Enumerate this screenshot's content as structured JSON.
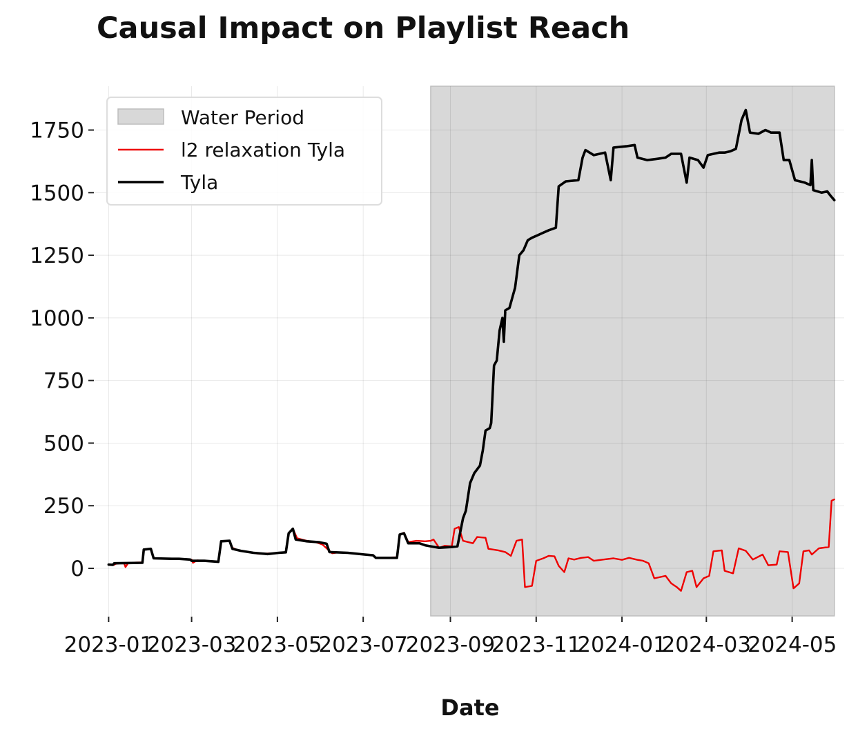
{
  "chart_data": {
    "type": "line",
    "title": "Causal Impact on Playlist Reach",
    "xlabel": "Date",
    "ylabel": "",
    "xlim": [
      "2022-12-22",
      "2024-06-07"
    ],
    "ylim": [
      -190,
      1925
    ],
    "y_ticks": [
      0,
      250,
      500,
      750,
      1000,
      1250,
      1500,
      1750
    ],
    "y_tick_labels": [
      "0",
      "250",
      "500",
      "750",
      "1000",
      "1250",
      "1500",
      "1750"
    ],
    "x_ticks": [
      "2023-01-01",
      "2023-03-01",
      "2023-05-01",
      "2023-07-01",
      "2023-09-01",
      "2023-11-01",
      "2024-01-01",
      "2024-03-01",
      "2024-05-01"
    ],
    "x_tick_labels": [
      "2023-01",
      "2023-03",
      "2023-05",
      "2023-07",
      "2023-09",
      "2023-11",
      "2024-01",
      "2024-03",
      "2024-05"
    ],
    "grid": true,
    "legend_position": "top-left",
    "shaded_region": {
      "label": "Water Period",
      "start": "2023-08-18",
      "end": "2024-05-31",
      "color": "#d8d8d8"
    },
    "series": [
      {
        "name": "l2 relaxation Tyla",
        "color": "#ee0000",
        "points": [
          [
            "2023-01-01",
            15
          ],
          [
            "2023-01-05",
            14
          ],
          [
            "2023-01-06",
            18
          ],
          [
            "2023-01-09",
            20
          ],
          [
            "2023-01-12",
            20
          ],
          [
            "2023-01-13",
            5
          ],
          [
            "2023-01-15",
            22
          ],
          [
            "2023-01-25",
            24
          ],
          [
            "2023-01-26",
            75
          ],
          [
            "2023-01-31",
            78
          ],
          [
            "2023-02-02",
            40
          ],
          [
            "2023-02-15",
            38
          ],
          [
            "2023-02-20",
            38
          ],
          [
            "2023-02-25",
            35
          ],
          [
            "2023-03-01",
            35
          ],
          [
            "2023-03-02",
            22
          ],
          [
            "2023-03-05",
            32
          ],
          [
            "2023-03-09",
            30
          ],
          [
            "2023-03-14",
            28
          ],
          [
            "2023-03-20",
            26
          ],
          [
            "2023-03-22",
            108
          ],
          [
            "2023-03-28",
            110
          ],
          [
            "2023-03-30",
            82
          ],
          [
            "2023-04-03",
            72
          ],
          [
            "2023-04-10",
            65
          ],
          [
            "2023-04-18",
            58
          ],
          [
            "2023-04-28",
            60
          ],
          [
            "2023-05-07",
            64
          ],
          [
            "2023-05-09",
            140
          ],
          [
            "2023-05-12",
            158
          ],
          [
            "2023-05-15",
            120
          ],
          [
            "2023-05-22",
            110
          ],
          [
            "2023-05-28",
            105
          ],
          [
            "2023-06-02",
            95
          ],
          [
            "2023-06-06",
            75
          ],
          [
            "2023-06-09",
            60
          ],
          [
            "2023-06-14",
            64
          ],
          [
            "2023-06-24",
            60
          ],
          [
            "2023-07-02",
            55
          ],
          [
            "2023-07-08",
            52
          ],
          [
            "2023-07-10",
            42
          ],
          [
            "2023-07-25",
            44
          ],
          [
            "2023-07-27",
            135
          ],
          [
            "2023-07-30",
            142
          ],
          [
            "2023-08-02",
            105
          ],
          [
            "2023-08-08",
            110
          ],
          [
            "2023-08-14",
            108
          ],
          [
            "2023-08-18",
            110
          ],
          [
            "2023-08-20",
            115
          ],
          [
            "2023-08-24",
            82
          ],
          [
            "2023-08-28",
            90
          ],
          [
            "2023-09-02",
            88
          ],
          [
            "2023-09-04",
            158
          ],
          [
            "2023-09-07",
            165
          ],
          [
            "2023-09-10",
            110
          ],
          [
            "2023-09-17",
            100
          ],
          [
            "2023-09-20",
            125
          ],
          [
            "2023-09-26",
            122
          ],
          [
            "2023-09-28",
            78
          ],
          [
            "2023-10-05",
            72
          ],
          [
            "2023-10-10",
            65
          ],
          [
            "2023-10-14",
            50
          ],
          [
            "2023-10-18",
            110
          ],
          [
            "2023-10-22",
            115
          ],
          [
            "2023-10-24",
            -75
          ],
          [
            "2023-10-29",
            -70
          ],
          [
            "2023-11-01",
            30
          ],
          [
            "2023-11-06",
            40
          ],
          [
            "2023-11-10",
            50
          ],
          [
            "2023-11-14",
            48
          ],
          [
            "2023-11-17",
            10
          ],
          [
            "2023-11-21",
            -15
          ],
          [
            "2023-11-24",
            40
          ],
          [
            "2023-11-28",
            35
          ],
          [
            "2023-12-03",
            42
          ],
          [
            "2023-12-08",
            45
          ],
          [
            "2023-12-12",
            30
          ],
          [
            "2023-12-20",
            36
          ],
          [
            "2023-12-26",
            40
          ],
          [
            "2024-01-01",
            34
          ],
          [
            "2024-01-06",
            42
          ],
          [
            "2024-01-12",
            34
          ],
          [
            "2024-01-16",
            30
          ],
          [
            "2024-01-20",
            20
          ],
          [
            "2024-01-24",
            -40
          ],
          [
            "2024-02-01",
            -30
          ],
          [
            "2024-02-05",
            -60
          ],
          [
            "2024-02-09",
            -75
          ],
          [
            "2024-02-12",
            -90
          ],
          [
            "2024-02-16",
            -15
          ],
          [
            "2024-02-20",
            -10
          ],
          [
            "2024-02-23",
            -75
          ],
          [
            "2024-02-28",
            -40
          ],
          [
            "2024-03-03",
            -30
          ],
          [
            "2024-03-06",
            68
          ],
          [
            "2024-03-12",
            72
          ],
          [
            "2024-03-14",
            -10
          ],
          [
            "2024-03-20",
            -20
          ],
          [
            "2024-03-24",
            80
          ],
          [
            "2024-03-29",
            70
          ],
          [
            "2024-04-03",
            35
          ],
          [
            "2024-04-10",
            55
          ],
          [
            "2024-04-14",
            12
          ],
          [
            "2024-04-20",
            15
          ],
          [
            "2024-04-22",
            68
          ],
          [
            "2024-04-28",
            65
          ],
          [
            "2024-05-02",
            -80
          ],
          [
            "2024-05-06",
            -60
          ],
          [
            "2024-05-09",
            68
          ],
          [
            "2024-05-13",
            72
          ],
          [
            "2024-05-15",
            55
          ],
          [
            "2024-05-20",
            80
          ],
          [
            "2024-05-27",
            85
          ],
          [
            "2024-05-29",
            270
          ],
          [
            "2024-05-31",
            275
          ]
        ]
      },
      {
        "name": "Tyla",
        "color": "#000000",
        "points": [
          [
            "2023-01-01",
            15
          ],
          [
            "2023-01-04",
            14
          ],
          [
            "2023-01-05",
            20
          ],
          [
            "2023-01-25",
            22
          ],
          [
            "2023-01-26",
            75
          ],
          [
            "2023-01-31",
            78
          ],
          [
            "2023-02-02",
            40
          ],
          [
            "2023-02-15",
            38
          ],
          [
            "2023-02-20",
            38
          ],
          [
            "2023-02-28",
            35
          ],
          [
            "2023-03-01",
            30
          ],
          [
            "2023-03-10",
            30
          ],
          [
            "2023-03-20",
            26
          ],
          [
            "2023-03-22",
            108
          ],
          [
            "2023-03-28",
            110
          ],
          [
            "2023-03-30",
            78
          ],
          [
            "2023-04-05",
            70
          ],
          [
            "2023-04-14",
            62
          ],
          [
            "2023-04-24",
            57
          ],
          [
            "2023-05-02",
            62
          ],
          [
            "2023-05-07",
            64
          ],
          [
            "2023-05-09",
            140
          ],
          [
            "2023-05-12",
            158
          ],
          [
            "2023-05-14",
            115
          ],
          [
            "2023-05-22",
            108
          ],
          [
            "2023-05-31",
            104
          ],
          [
            "2023-06-05",
            98
          ],
          [
            "2023-06-07",
            65
          ],
          [
            "2023-06-20",
            62
          ],
          [
            "2023-07-02",
            55
          ],
          [
            "2023-07-08",
            52
          ],
          [
            "2023-07-10",
            42
          ],
          [
            "2023-07-25",
            42
          ],
          [
            "2023-07-27",
            135
          ],
          [
            "2023-07-30",
            140
          ],
          [
            "2023-08-02",
            100
          ],
          [
            "2023-08-10",
            100
          ],
          [
            "2023-08-14",
            92
          ],
          [
            "2023-08-18",
            88
          ],
          [
            "2023-08-24",
            82
          ],
          [
            "2023-09-02",
            85
          ],
          [
            "2023-09-06",
            88
          ],
          [
            "2023-09-10",
            200
          ],
          [
            "2023-09-12",
            230
          ],
          [
            "2023-09-15",
            340
          ],
          [
            "2023-09-18",
            380
          ],
          [
            "2023-09-22",
            410
          ],
          [
            "2023-09-24",
            470
          ],
          [
            "2023-09-26",
            550
          ],
          [
            "2023-09-29",
            560
          ],
          [
            "2023-09-30",
            580
          ],
          [
            "2023-10-02",
            810
          ],
          [
            "2023-10-04",
            830
          ],
          [
            "2023-10-06",
            950
          ],
          [
            "2023-10-08",
            1000
          ],
          [
            "2023-10-09",
            905
          ],
          [
            "2023-10-10",
            1030
          ],
          [
            "2023-10-13",
            1040
          ],
          [
            "2023-10-15",
            1080
          ],
          [
            "2023-10-17",
            1120
          ],
          [
            "2023-10-20",
            1250
          ],
          [
            "2023-10-23",
            1270
          ],
          [
            "2023-10-26",
            1310
          ],
          [
            "2023-10-29",
            1320
          ],
          [
            "2023-11-02",
            1330
          ],
          [
            "2023-11-06",
            1340
          ],
          [
            "2023-11-10",
            1350
          ],
          [
            "2023-11-15",
            1360
          ],
          [
            "2023-11-17",
            1525
          ],
          [
            "2023-11-22",
            1545
          ],
          [
            "2023-12-01",
            1550
          ],
          [
            "2023-12-04",
            1640
          ],
          [
            "2023-12-06",
            1670
          ],
          [
            "2023-12-12",
            1650
          ],
          [
            "2023-12-20",
            1660
          ],
          [
            "2023-12-24",
            1550
          ],
          [
            "2023-12-26",
            1680
          ],
          [
            "2024-01-04",
            1685
          ],
          [
            "2024-01-10",
            1690
          ],
          [
            "2024-01-12",
            1640
          ],
          [
            "2024-01-19",
            1630
          ],
          [
            "2024-01-26",
            1635
          ],
          [
            "2024-02-01",
            1640
          ],
          [
            "2024-02-05",
            1655
          ],
          [
            "2024-02-12",
            1655
          ],
          [
            "2024-02-16",
            1540
          ],
          [
            "2024-02-18",
            1640
          ],
          [
            "2024-02-24",
            1630
          ],
          [
            "2024-02-28",
            1600
          ],
          [
            "2024-03-02",
            1650
          ],
          [
            "2024-03-10",
            1660
          ],
          [
            "2024-03-14",
            1660
          ],
          [
            "2024-03-18",
            1665
          ],
          [
            "2024-03-22",
            1675
          ],
          [
            "2024-03-26",
            1790
          ],
          [
            "2024-03-29",
            1830
          ],
          [
            "2024-04-01",
            1740
          ],
          [
            "2024-04-07",
            1735
          ],
          [
            "2024-04-12",
            1750
          ],
          [
            "2024-04-16",
            1740
          ],
          [
            "2024-04-22",
            1740
          ],
          [
            "2024-04-25",
            1630
          ],
          [
            "2024-04-29",
            1630
          ],
          [
            "2024-05-03",
            1550
          ],
          [
            "2024-05-10",
            1540
          ],
          [
            "2024-05-14",
            1530
          ],
          [
            "2024-05-15",
            1630
          ],
          [
            "2024-05-16",
            1510
          ],
          [
            "2024-05-22",
            1500
          ],
          [
            "2024-05-26",
            1505
          ],
          [
            "2024-05-28",
            1490
          ],
          [
            "2024-05-31",
            1470
          ]
        ]
      }
    ]
  }
}
